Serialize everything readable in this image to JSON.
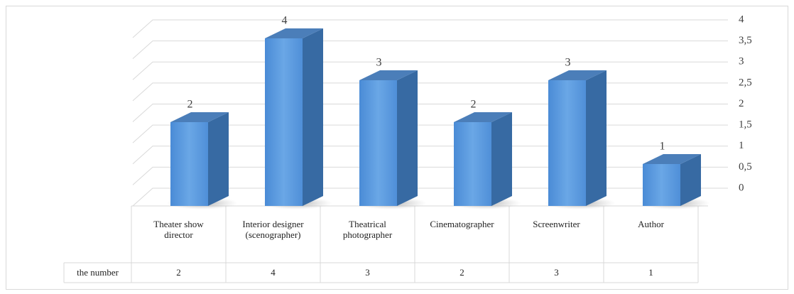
{
  "chart_data": {
    "type": "bar3d",
    "categories": [
      "Theater show director",
      "Interior designer (scenographer)",
      "Theatrical photographer",
      "Cinematographer",
      "Screenwriter",
      "Author"
    ],
    "series": [
      {
        "name": "the number",
        "color": "#5b9bd5",
        "values": [
          2,
          4,
          3,
          2,
          3,
          1
        ]
      }
    ],
    "ylim": [
      0,
      4
    ],
    "yticks": [
      0,
      {
        "value": 0.5,
        "label": "0,5"
      },
      1,
      {
        "value": 1.5,
        "label": "1,5"
      },
      2,
      {
        "value": 2.5,
        "label": "2,5"
      },
      3,
      {
        "value": 3.5,
        "label": "3,5"
      },
      4
    ],
    "grid": true,
    "data_table": true
  }
}
